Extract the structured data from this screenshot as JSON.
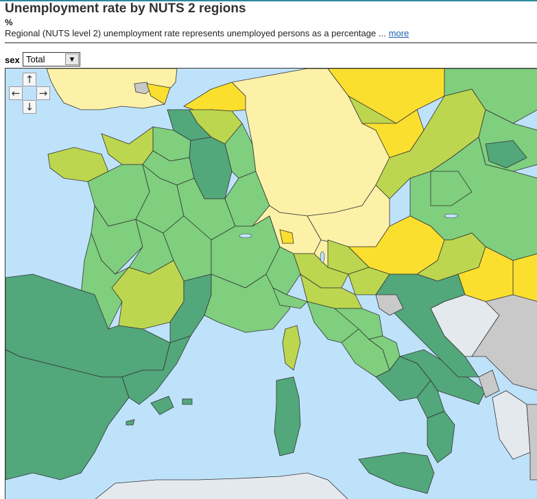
{
  "header": {
    "title": "Unemployment rate by NUTS 2 regions",
    "unit": "%",
    "description": "Regional (NUTS level 2) unemployment rate represents unemployed persons as a percentage ...",
    "more_link": "more"
  },
  "filters": {
    "sex_label": "sex",
    "sex_value": "Total"
  },
  "navigation": {
    "up_icon": "arrow-up-icon",
    "down_icon": "arrow-down-icon",
    "left_icon": "arrow-left-icon",
    "right_icon": "arrow-right-icon"
  },
  "colors": {
    "sea": "#bfe2fb",
    "no_data": "#c9c9c9",
    "non_eu": "#e4e9ee",
    "class_lowest": "#fdf1a7",
    "class_low": "#fbdf2f",
    "class_mid": "#bdd64f",
    "class_high": "#7fcf7e",
    "class_highest": "#52a77b",
    "border": "#333333"
  }
}
